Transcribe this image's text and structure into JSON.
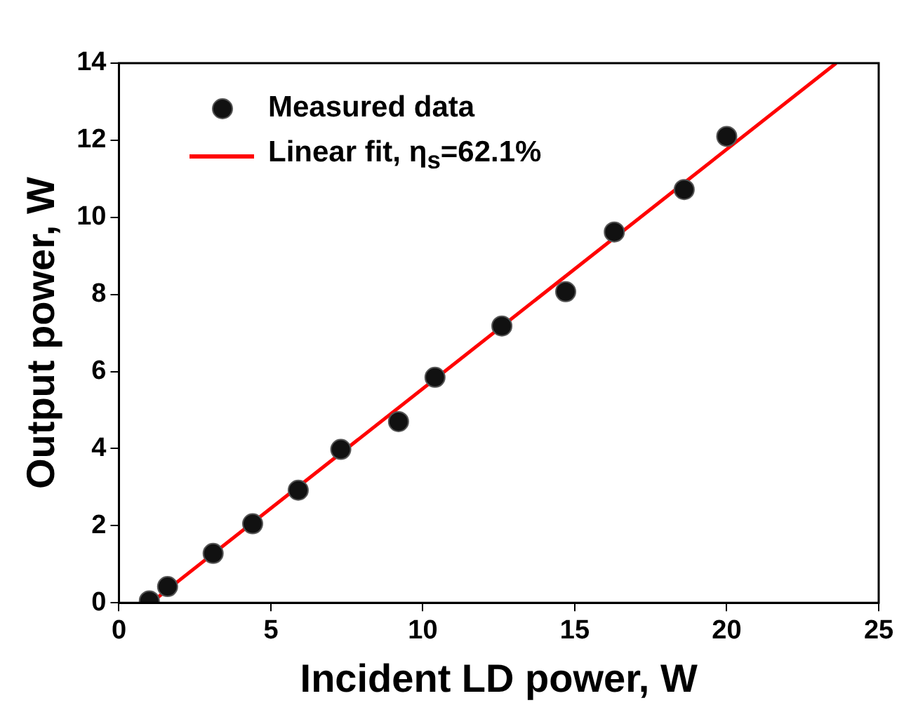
{
  "chart_data": {
    "type": "scatter",
    "xlabel": "Incident LD power, W",
    "ylabel": "Output power, W",
    "xlim": [
      0,
      25
    ],
    "xticks": [
      0,
      5,
      10,
      15,
      20,
      25
    ],
    "ylim": [
      0,
      14
    ],
    "yticks": [
      0,
      2,
      4,
      6,
      8,
      10,
      12,
      14
    ],
    "grid": false,
    "legend": "top left",
    "marker": "circle",
    "series": [
      {
        "name": "Measured data",
        "color": "#111111",
        "x": [
          1.0,
          1.6,
          3.1,
          4.4,
          5.9,
          7.3,
          9.2,
          10.4,
          12.6,
          14.7,
          16.3,
          18.6,
          20.0
        ],
        "values": [
          0.05,
          0.42,
          1.28,
          2.05,
          2.92,
          3.98,
          4.7,
          5.85,
          7.18,
          8.07,
          9.62,
          10.72,
          12.1
        ]
      },
      {
        "name": "Linear fit, η$_{s}$=62.1%",
        "type": "line",
        "color": "#ff0000",
        "marker": "none",
        "line_style": "solid",
        "x": [
          1.05,
          23.6
        ],
        "values": [
          0,
          14
        ]
      }
    ]
  }
}
